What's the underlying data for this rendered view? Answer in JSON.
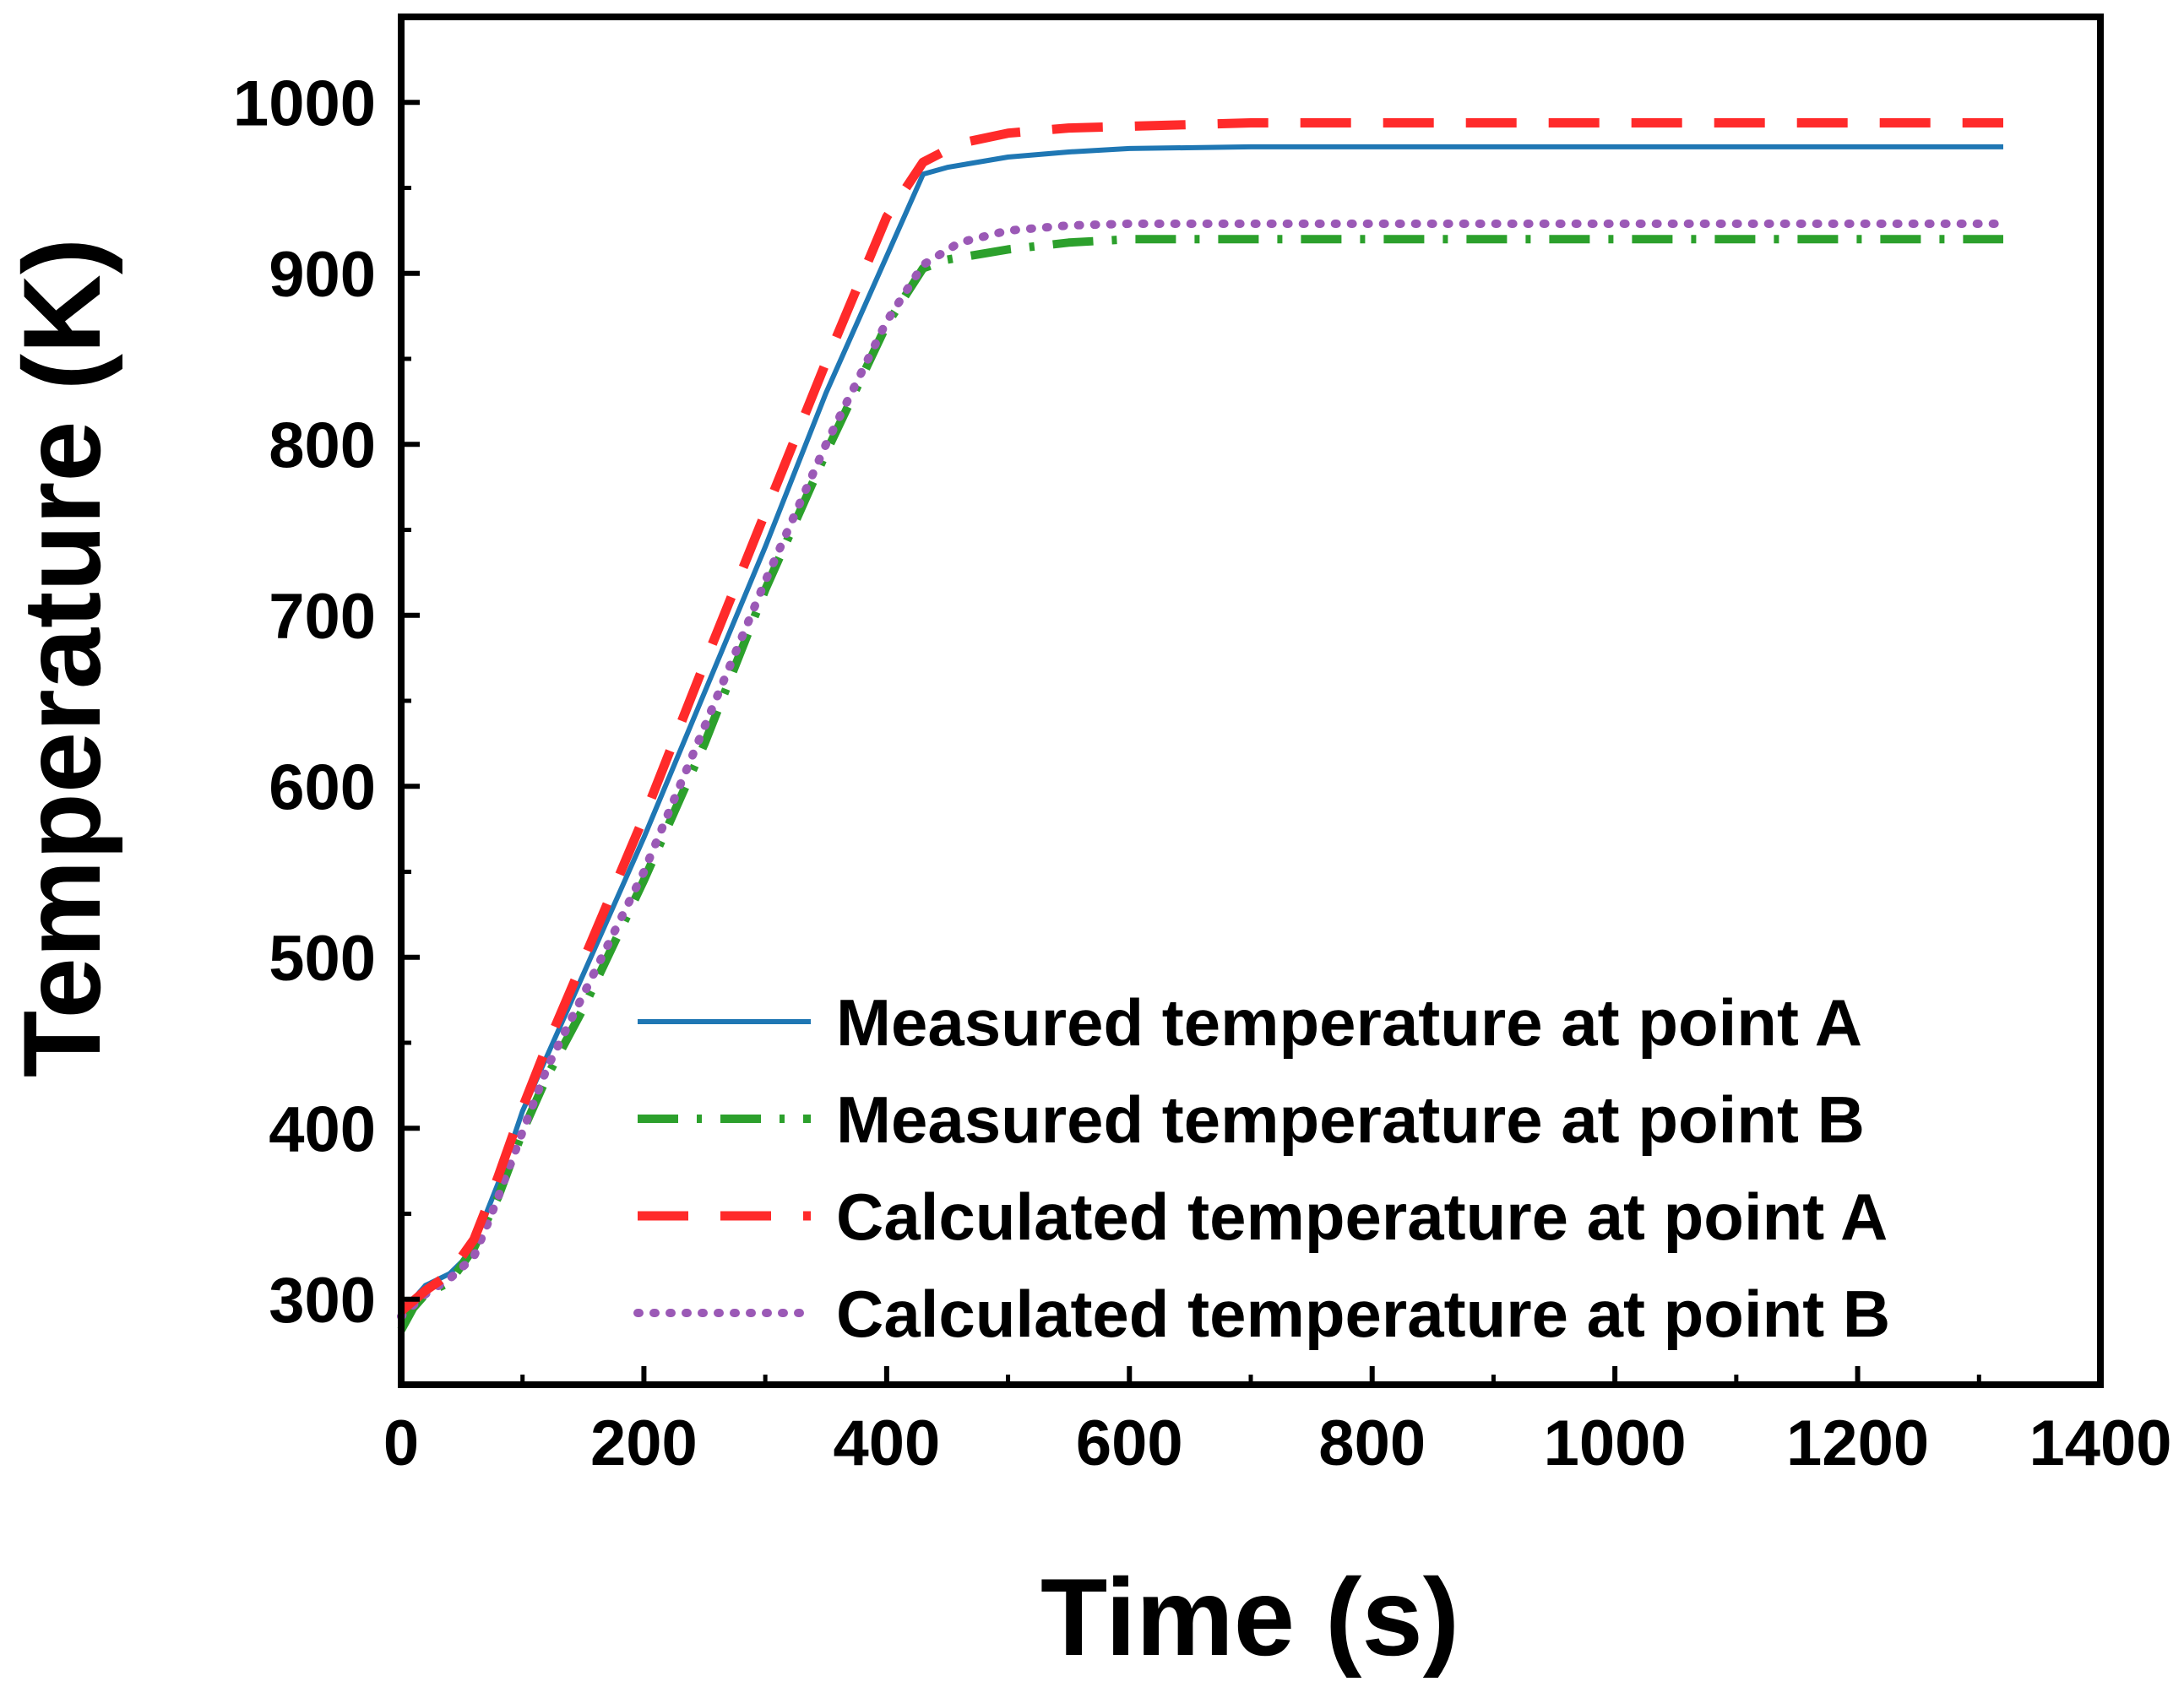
{
  "chart_data": {
    "type": "line",
    "title": "",
    "xlabel": "Time (s)",
    "ylabel": "Temperature (K)",
    "xlim": [
      0,
      1400
    ],
    "ylim": [
      250,
      1050
    ],
    "xticks": [
      0,
      200,
      400,
      600,
      800,
      1000,
      1200,
      1400
    ],
    "yticks": [
      300,
      400,
      500,
      600,
      700,
      800,
      900,
      1000
    ],
    "xtick_labels": [
      "0",
      "200",
      "400",
      "600",
      "800",
      "1000",
      "1200",
      "1400"
    ],
    "ytick_labels": [
      "300",
      "400",
      "500",
      "600",
      "700",
      "800",
      "900",
      "1000"
    ],
    "grid": false,
    "legend_position": "bottom-right",
    "series": [
      {
        "name": "Measured temperature at point A",
        "color": "#1f77b4",
        "style": "solid",
        "points": [
          [
            0,
            285
          ],
          [
            10,
            300
          ],
          [
            20,
            308
          ],
          [
            40,
            315
          ],
          [
            50,
            322
          ],
          [
            60,
            332
          ],
          [
            70,
            350
          ],
          [
            80,
            368
          ],
          [
            100,
            410
          ],
          [
            120,
            442
          ],
          [
            150,
            490
          ],
          [
            200,
            570
          ],
          [
            250,
            655
          ],
          [
            300,
            740
          ],
          [
            350,
            830
          ],
          [
            400,
            910
          ],
          [
            430,
            958
          ],
          [
            450,
            962
          ],
          [
            500,
            968
          ],
          [
            550,
            971
          ],
          [
            600,
            973
          ],
          [
            700,
            974
          ],
          [
            800,
            974
          ],
          [
            1000,
            974
          ],
          [
            1200,
            974
          ],
          [
            1320,
            974
          ]
        ]
      },
      {
        "name": "Measured temperature at point B",
        "color": "#2ca02c",
        "style": "dashdot",
        "points": [
          [
            0,
            282
          ],
          [
            10,
            295
          ],
          [
            20,
            303
          ],
          [
            40,
            310
          ],
          [
            50,
            320
          ],
          [
            60,
            330
          ],
          [
            70,
            345
          ],
          [
            80,
            360
          ],
          [
            100,
            398
          ],
          [
            120,
            430
          ],
          [
            150,
            470
          ],
          [
            200,
            545
          ],
          [
            250,
            625
          ],
          [
            300,
            715
          ],
          [
            350,
            795
          ],
          [
            400,
            870
          ],
          [
            430,
            903
          ],
          [
            450,
            908
          ],
          [
            500,
            914
          ],
          [
            550,
            918
          ],
          [
            600,
            920
          ],
          [
            700,
            920
          ],
          [
            800,
            920
          ],
          [
            1000,
            920
          ],
          [
            1200,
            920
          ],
          [
            1320,
            920
          ]
        ]
      },
      {
        "name": "Calculated temperature at point A",
        "color": "#ff2a2a",
        "style": "dashed",
        "points": [
          [
            0,
            293
          ],
          [
            20,
            305
          ],
          [
            40,
            315
          ],
          [
            60,
            335
          ],
          [
            70,
            353
          ],
          [
            80,
            372
          ],
          [
            100,
            412
          ],
          [
            120,
            448
          ],
          [
            150,
            498
          ],
          [
            200,
            582
          ],
          [
            250,
            672
          ],
          [
            300,
            760
          ],
          [
            350,
            848
          ],
          [
            400,
            933
          ],
          [
            430,
            965
          ],
          [
            460,
            976
          ],
          [
            500,
            982
          ],
          [
            550,
            985
          ],
          [
            600,
            986
          ],
          [
            700,
            988
          ],
          [
            800,
            988
          ],
          [
            1000,
            988
          ],
          [
            1200,
            988
          ],
          [
            1320,
            988
          ]
        ]
      },
      {
        "name": "Calculated temperature at point B",
        "color": "#9b59b6",
        "style": "dotted",
        "points": [
          [
            0,
            290
          ],
          [
            20,
            303
          ],
          [
            40,
            312
          ],
          [
            60,
            325
          ],
          [
            70,
            342
          ],
          [
            80,
            360
          ],
          [
            100,
            398
          ],
          [
            120,
            435
          ],
          [
            150,
            478
          ],
          [
            200,
            550
          ],
          [
            250,
            635
          ],
          [
            300,
            720
          ],
          [
            350,
            800
          ],
          [
            400,
            872
          ],
          [
            430,
            905
          ],
          [
            460,
            918
          ],
          [
            500,
            925
          ],
          [
            550,
            928
          ],
          [
            600,
            929
          ],
          [
            700,
            929
          ],
          [
            800,
            929
          ],
          [
            1000,
            929
          ],
          [
            1200,
            929
          ],
          [
            1320,
            929
          ]
        ]
      }
    ]
  }
}
